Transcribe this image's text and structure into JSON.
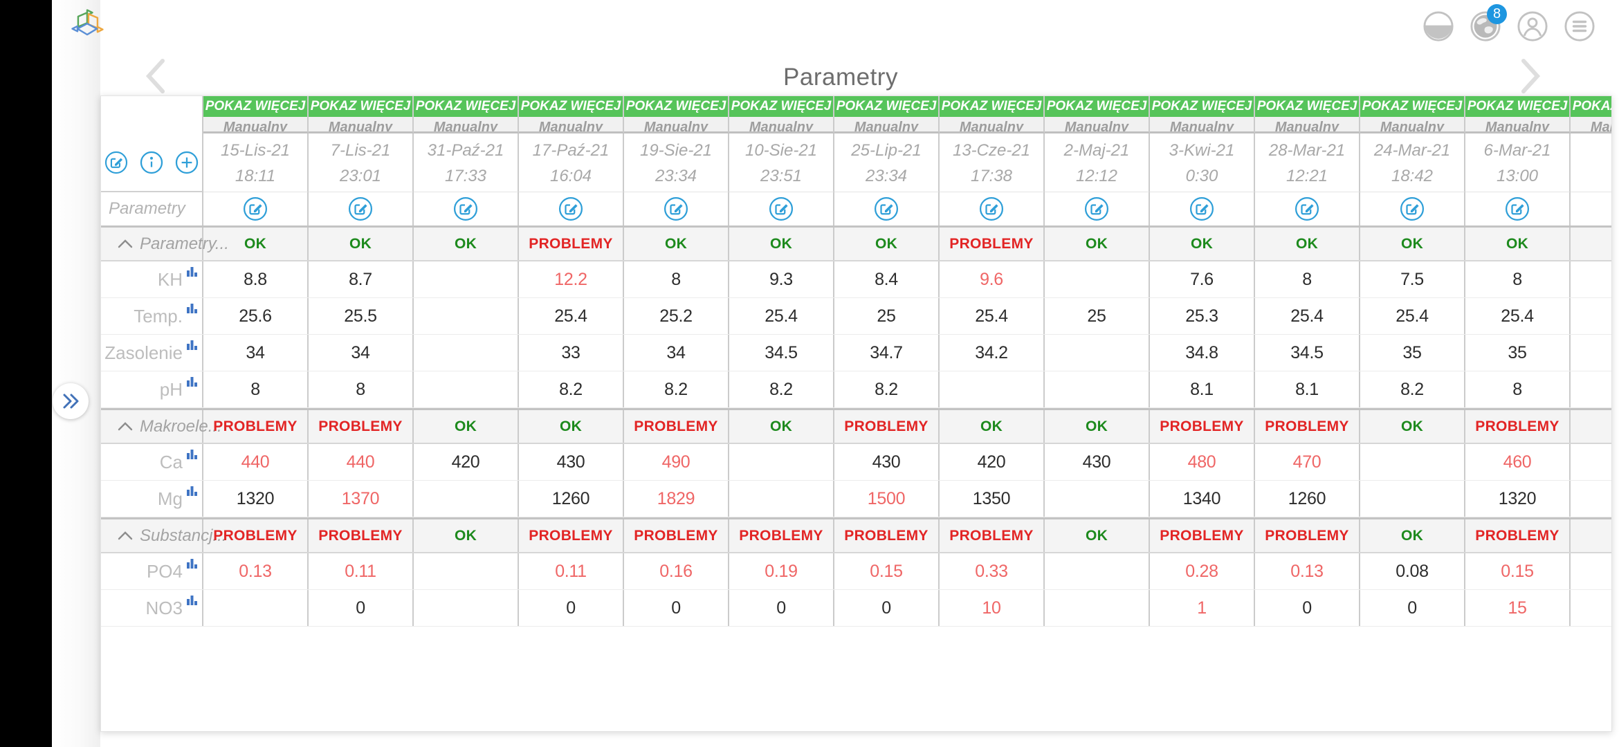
{
  "page": {
    "title": "Parametry"
  },
  "topbar": {
    "badge_count": "8"
  },
  "colors": {
    "accent_green": "#56c45a",
    "status_ok": "#1d8a1d",
    "status_problem": "#e22525",
    "value_alert": "#ef6666",
    "icon_blue": "#2f9fd8",
    "chart_blue": "#3f74c4",
    "badge_blue": "#1e96e0",
    "logo_green": "#57a65a",
    "logo_orange": "#eda73f",
    "logo_blue": "#5b8fd6"
  },
  "table": {
    "show_more": "POKAZ WIĘCEJ",
    "source": "Manualny",
    "corner_label": "Parametry",
    "status_ok": "OK",
    "status_problem": "PROBLEMY",
    "columns": [
      {
        "date": "15-Lis-21",
        "time": "18:11"
      },
      {
        "date": "7-Lis-21",
        "time": "23:01"
      },
      {
        "date": "31-Paź-21",
        "time": "17:33"
      },
      {
        "date": "17-Paź-21",
        "time": "16:04"
      },
      {
        "date": "19-Sie-21",
        "time": "23:34"
      },
      {
        "date": "10-Sie-21",
        "time": "23:51"
      },
      {
        "date": "25-Lip-21",
        "time": "23:34"
      },
      {
        "date": "13-Cze-21",
        "time": "17:38"
      },
      {
        "date": "2-Maj-21",
        "time": "12:12"
      },
      {
        "date": "3-Kwi-21",
        "time": "0:30"
      },
      {
        "date": "28-Mar-21",
        "time": "12:21"
      },
      {
        "date": "24-Mar-21",
        "time": "18:42"
      },
      {
        "date": "6-Mar-21",
        "time": "13:00"
      },
      {
        "date": "",
        "time": ""
      }
    ],
    "sections": [
      {
        "label": "Parametry...",
        "statuses": [
          "ok",
          "ok",
          "ok",
          "problem",
          "ok",
          "ok",
          "ok",
          "problem",
          "ok",
          "ok",
          "ok",
          "ok",
          "ok",
          ""
        ],
        "rows": [
          {
            "label": "KH",
            "values": [
              "8.8",
              "8.7",
              "",
              {
                "v": "12.2",
                "alert": true
              },
              "8",
              "9.3",
              "8.4",
              {
                "v": "9.6",
                "alert": true
              },
              "",
              "7.6",
              "8",
              "7.5",
              "8",
              ""
            ]
          },
          {
            "label": "Temp.",
            "values": [
              "25.6",
              "25.5",
              "",
              "25.4",
              "25.2",
              "25.4",
              "25",
              "25.4",
              "25",
              "25.3",
              "25.4",
              "25.4",
              "25.4",
              ""
            ]
          },
          {
            "label": "Zasolenie",
            "values": [
              "34",
              "34",
              "",
              "33",
              "34",
              "34.5",
              "34.7",
              "34.2",
              "",
              "34.8",
              "34.5",
              "35",
              "35",
              ""
            ]
          },
          {
            "label": "pH",
            "values": [
              "8",
              "8",
              "",
              "8.2",
              "8.2",
              "8.2",
              "8.2",
              "",
              "",
              "8.1",
              "8.1",
              "8.2",
              "8",
              ""
            ]
          }
        ]
      },
      {
        "label": "Makroele...",
        "statuses": [
          "problem",
          "problem",
          "ok",
          "ok",
          "problem",
          "ok",
          "problem",
          "ok",
          "ok",
          "problem",
          "problem",
          "ok",
          "problem",
          ""
        ],
        "rows": [
          {
            "label": "Ca",
            "values": [
              {
                "v": "440",
                "alert": true
              },
              {
                "v": "440",
                "alert": true
              },
              "420",
              "430",
              {
                "v": "490",
                "alert": true
              },
              "",
              "430",
              "420",
              "430",
              {
                "v": "480",
                "alert": true
              },
              {
                "v": "470",
                "alert": true
              },
              "",
              {
                "v": "460",
                "alert": true
              },
              ""
            ]
          },
          {
            "label": "Mg",
            "values": [
              "1320",
              {
                "v": "1370",
                "alert": true
              },
              "",
              "1260",
              {
                "v": "1829",
                "alert": true
              },
              "",
              {
                "v": "1500",
                "alert": true
              },
              "1350",
              "",
              "1340",
              "1260",
              "",
              "1320",
              ""
            ]
          }
        ]
      },
      {
        "label": "Substancj...",
        "statuses": [
          "problem",
          "problem",
          "ok",
          "problem",
          "problem",
          "problem",
          "problem",
          "problem",
          "ok",
          "problem",
          "problem",
          "ok",
          "problem",
          ""
        ],
        "rows": [
          {
            "label": "PO4",
            "values": [
              {
                "v": "0.13",
                "alert": true
              },
              {
                "v": "0.11",
                "alert": true
              },
              "",
              {
                "v": "0.11",
                "alert": true
              },
              {
                "v": "0.16",
                "alert": true
              },
              {
                "v": "0.19",
                "alert": true
              },
              {
                "v": "0.15",
                "alert": true
              },
              {
                "v": "0.33",
                "alert": true
              },
              "",
              {
                "v": "0.28",
                "alert": true
              },
              {
                "v": "0.13",
                "alert": true
              },
              "0.08",
              {
                "v": "0.15",
                "alert": true
              },
              ""
            ]
          },
          {
            "label": "NO3",
            "values": [
              "",
              "0",
              "",
              "0",
              "0",
              "0",
              "0",
              {
                "v": "10",
                "alert": true
              },
              "",
              {
                "v": "1",
                "alert": true
              },
              "0",
              "0",
              {
                "v": "15",
                "alert": true
              },
              ""
            ]
          }
        ]
      }
    ]
  }
}
